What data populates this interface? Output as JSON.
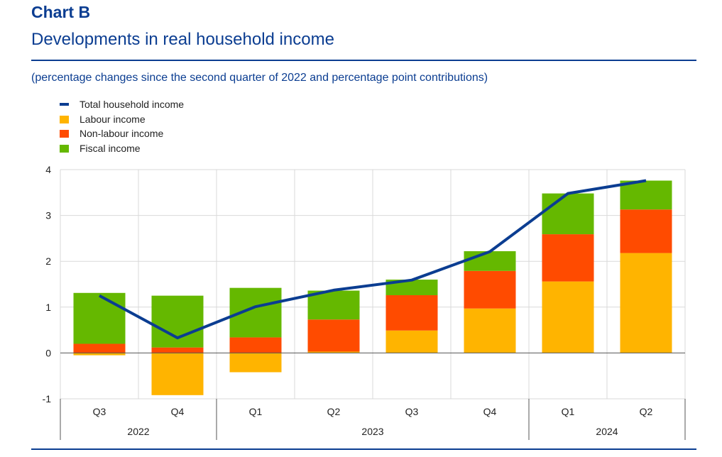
{
  "header": {
    "chart_label": "Chart B",
    "title": "Developments in real household income",
    "subtitle": "(percentage changes since the second quarter of 2022 and percentage point contributions)"
  },
  "colors": {
    "brand": "#0b3d91",
    "labour": "#ffb400",
    "non_labour": "#ff4b00",
    "fiscal": "#65b800",
    "total": "#0b3d91"
  },
  "chart_data": {
    "type": "bar",
    "stacked": true,
    "categories": [
      "Q3",
      "Q4",
      "Q1",
      "Q2",
      "Q3",
      "Q4",
      "Q1",
      "Q2"
    ],
    "years": [
      {
        "label": "2022",
        "span": 2
      },
      {
        "label": "2023",
        "span": 4
      },
      {
        "label": "2024",
        "span": 2
      }
    ],
    "series": [
      {
        "name": "Labour income",
        "kind": "bar",
        "color": "#ffb400",
        "values": [
          -0.05,
          -0.92,
          -0.42,
          0.03,
          0.49,
          0.97,
          1.56,
          2.18
        ]
      },
      {
        "name": "Non-labour income",
        "kind": "bar",
        "color": "#ff4b00",
        "values": [
          0.2,
          0.12,
          0.34,
          0.7,
          0.77,
          0.82,
          1.03,
          0.95
        ]
      },
      {
        "name": "Fiscal income",
        "kind": "bar",
        "color": "#65b800",
        "values": [
          1.11,
          1.13,
          1.08,
          0.63,
          0.34,
          0.43,
          0.89,
          0.63
        ]
      },
      {
        "name": "Total household income",
        "kind": "line",
        "color": "#0b3d91",
        "values": [
          1.25,
          0.33,
          1.01,
          1.37,
          1.59,
          2.21,
          3.48,
          3.76
        ]
      }
    ],
    "legend_order": [
      "Total household income",
      "Labour income",
      "Non-labour income",
      "Fiscal income"
    ],
    "ylim": [
      -1,
      4
    ],
    "yticks": [
      -1,
      0,
      1,
      2,
      3,
      4
    ],
    "grid": true,
    "legend_position": "top-left"
  }
}
